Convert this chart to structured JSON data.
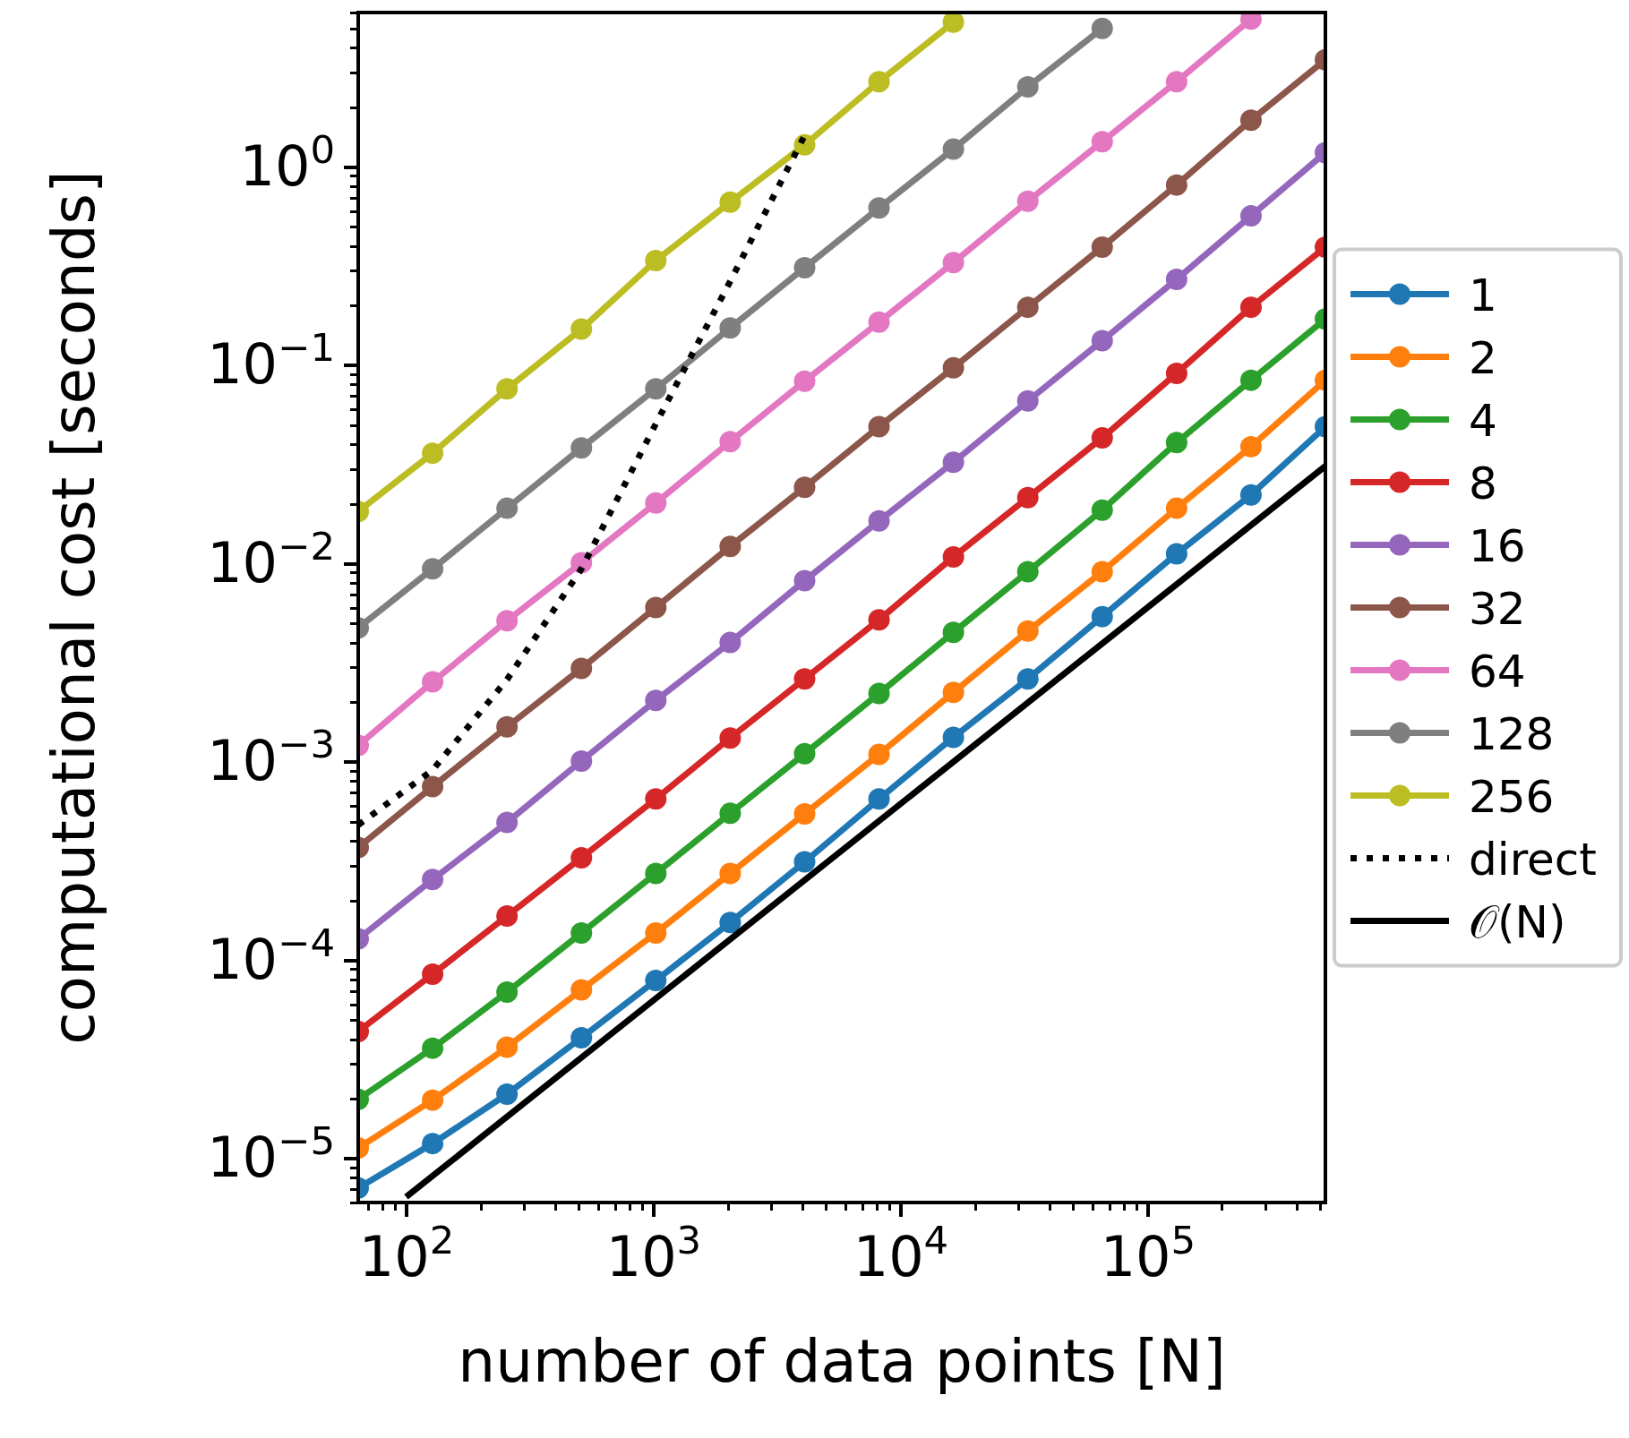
{
  "chart_data": {
    "type": "line",
    "xlabel": "number of data points [N]",
    "ylabel": "computational cost [seconds]",
    "log": "xy",
    "grid": false,
    "legend": "right",
    "marker": "circle",
    "x": [
      64,
      128,
      256,
      512,
      1024,
      2048,
      4096,
      8192,
      16384,
      32768,
      65536,
      131072,
      262144,
      524288
    ],
    "xlim": [
      64,
      524288
    ],
    "ylim": [
      6e-06,
      6
    ],
    "xticks": [
      {
        "value": 70,
        "label": null
      },
      {
        "value": 80,
        "label": null
      },
      {
        "value": 90,
        "label": null
      },
      {
        "value": 100,
        "label": "10$^{2}$"
      },
      {
        "value": 200,
        "label": null
      },
      {
        "value": 300,
        "label": null
      },
      {
        "value": 400,
        "label": null
      },
      {
        "value": 500,
        "label": null
      },
      {
        "value": 600,
        "label": null
      },
      {
        "value": 700,
        "label": null
      },
      {
        "value": 800,
        "label": null
      },
      {
        "value": 900,
        "label": null
      },
      {
        "value": 1000,
        "label": "10$^{3}$"
      },
      {
        "value": 2000,
        "label": null
      },
      {
        "value": 3000,
        "label": null
      },
      {
        "value": 4000,
        "label": null
      },
      {
        "value": 5000,
        "label": null
      },
      {
        "value": 6000,
        "label": null
      },
      {
        "value": 7000,
        "label": null
      },
      {
        "value": 8000,
        "label": null
      },
      {
        "value": 9000,
        "label": null
      },
      {
        "value": 10000,
        "label": "10$^{4}$"
      },
      {
        "value": 20000,
        "label": null
      },
      {
        "value": 30000,
        "label": null
      },
      {
        "value": 40000,
        "label": null
      },
      {
        "value": 50000,
        "label": null
      },
      {
        "value": 60000,
        "label": null
      },
      {
        "value": 70000,
        "label": null
      },
      {
        "value": 80000,
        "label": null
      },
      {
        "value": 90000,
        "label": null
      },
      {
        "value": 100000,
        "label": "10$^{5}$"
      },
      {
        "value": 200000,
        "label": null
      },
      {
        "value": 300000,
        "label": null
      },
      {
        "value": 400000,
        "label": null
      },
      {
        "value": 500000,
        "label": null
      }
    ],
    "yticks": [
      {
        "value": 6e-06,
        "label": null
      },
      {
        "value": 7e-06,
        "label": null
      },
      {
        "value": 8e-06,
        "label": null
      },
      {
        "value": 9e-06,
        "label": null
      },
      {
        "value": 1e-05,
        "label": "10$^{−5}$"
      },
      {
        "value": 2e-05,
        "label": null
      },
      {
        "value": 3e-05,
        "label": null
      },
      {
        "value": 4e-05,
        "label": null
      },
      {
        "value": 5e-05,
        "label": null
      },
      {
        "value": 6e-05,
        "label": null
      },
      {
        "value": 7e-05,
        "label": null
      },
      {
        "value": 8e-05,
        "label": null
      },
      {
        "value": 9e-05,
        "label": null
      },
      {
        "value": 0.0001,
        "label": "10$^{−4}$"
      },
      {
        "value": 0.0002,
        "label": null
      },
      {
        "value": 0.0003,
        "label": null
      },
      {
        "value": 0.0004,
        "label": null
      },
      {
        "value": 0.0005,
        "label": null
      },
      {
        "value": 0.0006,
        "label": null
      },
      {
        "value": 0.0007,
        "label": null
      },
      {
        "value": 0.0008,
        "label": null
      },
      {
        "value": 0.0009,
        "label": null
      },
      {
        "value": 0.001,
        "label": "10$^{−3}$"
      },
      {
        "value": 0.002,
        "label": null
      },
      {
        "value": 0.003,
        "label": null
      },
      {
        "value": 0.004,
        "label": null
      },
      {
        "value": 0.005,
        "label": null
      },
      {
        "value": 0.006,
        "label": null
      },
      {
        "value": 0.007,
        "label": null
      },
      {
        "value": 0.008,
        "label": null
      },
      {
        "value": 0.009,
        "label": null
      },
      {
        "value": 0.01,
        "label": "10$^{−2}$"
      },
      {
        "value": 0.02,
        "label": null
      },
      {
        "value": 0.03,
        "label": null
      },
      {
        "value": 0.04,
        "label": null
      },
      {
        "value": 0.05,
        "label": null
      },
      {
        "value": 0.06,
        "label": null
      },
      {
        "value": 0.07,
        "label": null
      },
      {
        "value": 0.08,
        "label": null
      },
      {
        "value": 0.09,
        "label": null
      },
      {
        "value": 0.1,
        "label": "10$^{−1}$"
      },
      {
        "value": 0.2,
        "label": null
      },
      {
        "value": 0.3,
        "label": null
      },
      {
        "value": 0.4,
        "label": null
      },
      {
        "value": 0.5,
        "label": null
      },
      {
        "value": 0.6,
        "label": null
      },
      {
        "value": 0.7,
        "label": null
      },
      {
        "value": 0.8,
        "label": null
      },
      {
        "value": 0.9,
        "label": null
      },
      {
        "value": 1,
        "label": "10$^{0}$"
      },
      {
        "value": 2,
        "label": null
      },
      {
        "value": 3,
        "label": null
      },
      {
        "value": 4,
        "label": null
      },
      {
        "value": 5,
        "label": null
      },
      {
        "value": 6,
        "label": null
      }
    ],
    "series": [
      {
        "name": "1",
        "color": "#1f77b4",
        "values": [
          7.1e-06,
          1.19e-05,
          2.11e-05,
          4.06e-05,
          7.9e-05,
          0.000155,
          0.000313,
          0.00065,
          0.00133,
          0.00262,
          0.0054,
          0.0112,
          0.0222,
          0.049
        ]
      },
      {
        "name": "2",
        "color": "#ff7f0e",
        "values": [
          1.13e-05,
          1.97e-05,
          3.64e-05,
          7.08e-05,
          0.000137,
          0.000274,
          0.000546,
          0.00109,
          0.00224,
          0.00457,
          0.0091,
          0.019,
          0.0388,
          0.084
        ]
      },
      {
        "name": "4",
        "color": "#2ca02c",
        "values": [
          1.99e-05,
          3.6e-05,
          6.9e-05,
          0.000137,
          0.000274,
          0.00055,
          0.0011,
          0.00221,
          0.0045,
          0.0091,
          0.0186,
          0.0407,
          0.084,
          0.171
        ]
      },
      {
        "name": "8",
        "color": "#d62728",
        "values": [
          4.37e-05,
          8.5e-05,
          0.000167,
          0.000328,
          0.00065,
          0.00132,
          0.00262,
          0.0052,
          0.0108,
          0.0215,
          0.043,
          0.091,
          0.196,
          0.394
        ]
      },
      {
        "name": "16",
        "color": "#9467bd",
        "values": [
          0.000128,
          0.000255,
          0.000495,
          0.00101,
          0.00204,
          0.004,
          0.0082,
          0.0164,
          0.0324,
          0.066,
          0.133,
          0.271,
          0.566,
          1.18
        ]
      },
      {
        "name": "32",
        "color": "#8c564b",
        "values": [
          0.00037,
          0.00075,
          0.0015,
          0.00296,
          0.006,
          0.0122,
          0.0242,
          0.049,
          0.097,
          0.196,
          0.394,
          0.81,
          1.72,
          3.47
        ]
      },
      {
        "name": "64",
        "color": "#e377c2",
        "values": [
          0.00121,
          0.00253,
          0.00515,
          0.0101,
          0.0202,
          0.0412,
          0.083,
          0.165,
          0.329,
          0.671,
          1.34,
          2.69,
          5.56,
          null
        ]
      },
      {
        "name": "128",
        "color": "#7f7f7f",
        "values": [
          0.00474,
          0.0094,
          0.019,
          0.0383,
          0.076,
          0.154,
          0.31,
          0.62,
          1.23,
          2.53,
          4.99,
          null,
          null,
          null
        ]
      },
      {
        "name": "256",
        "color": "#bcbd22",
        "values": [
          0.0183,
          0.036,
          0.076,
          0.152,
          0.337,
          0.664,
          1.29,
          2.69,
          5.36,
          null,
          null,
          null,
          null,
          null
        ]
      },
      {
        "name": "direct",
        "color": "#000000",
        "marker": "none",
        "line_style": "dotted",
        "x": [
          64,
          128,
          256,
          512,
          1024,
          2048,
          4096
        ],
        "values": [
          0.00048,
          0.00091,
          0.0026,
          0.0094,
          0.0506,
          0.265,
          1.44
        ]
      },
      {
        "name": "𝒪(N)",
        "color": "#000000",
        "marker": "none",
        "line_style": "solid",
        "x": [
          100,
          524288
        ],
        "values": [
          6.4e-06,
          0.031
        ]
      }
    ]
  }
}
